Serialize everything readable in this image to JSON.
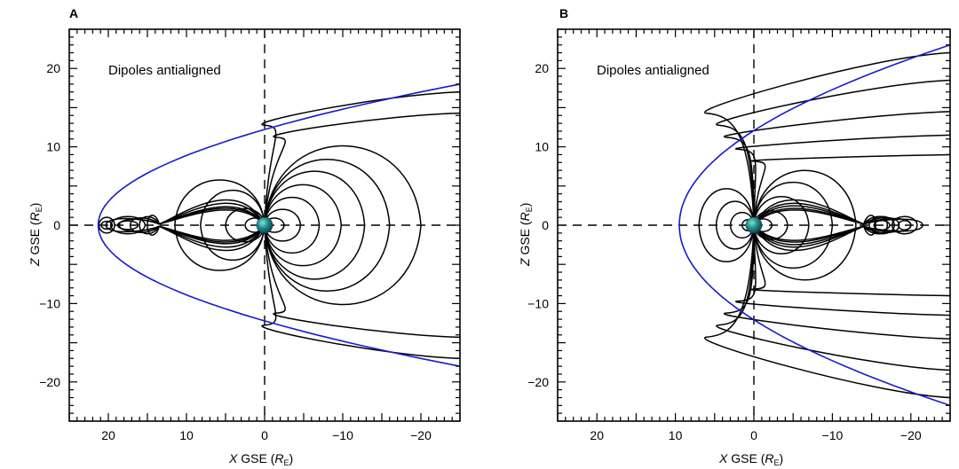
{
  "colors": {
    "frame": "#000000",
    "field_lines": "#000000",
    "magnetopause": "#1a1acc",
    "earth_light": "#7fe3d0",
    "earth_mid": "#1f8a88",
    "earth_dark": "#0b3f4a"
  },
  "panels": [
    {
      "label": "A",
      "annotation": "Dipoles antialigned",
      "x_axis": {
        "label_italic": "X",
        "label_main": " GSE (",
        "label_R": "R",
        "label_sub": "E",
        "label_close": ")",
        "range": [
          25,
          -25
        ],
        "ticks": [
          20,
          10,
          0,
          -10,
          -20
        ],
        "tick_labels": [
          "20",
          "10",
          "0",
          "−10",
          "−20"
        ]
      },
      "y_axis": {
        "label_italic": "Z",
        "label_main": " GSE (",
        "label_R": "R",
        "label_sub": "E",
        "label_close": ")",
        "range": [
          -25,
          25
        ],
        "ticks": [
          20,
          10,
          0,
          -10,
          -20
        ],
        "tick_labels": [
          "20",
          "10",
          "0",
          "−10",
          "−20"
        ]
      },
      "magnetopause": {
        "nose_x": 21.3,
        "tail_x": -25,
        "tail_halfwidth": 18
      },
      "field_lines": {
        "closed_loops": [
          {
            "x_far": -2.5,
            "height": 0.9
          },
          {
            "x_far": -4.6,
            "height": 2.0
          },
          {
            "x_far": -7.0,
            "height": 3.5
          },
          {
            "x_far": -9.8,
            "height": 5.1
          },
          {
            "x_far": -12.8,
            "height": 6.8
          },
          {
            "x_far": -16.0,
            "height": 8.3
          },
          {
            "x_far": -20.0,
            "height": 10.0
          },
          {
            "x_far": 2.5,
            "height": 0.9
          },
          {
            "x_far": 5.0,
            "height": 2.1
          },
          {
            "x_far": 8.2,
            "height": 4.4
          },
          {
            "x_far": 11.5,
            "height": 5.7
          }
        ],
        "neutral_point_x": 13.5,
        "reconnected": [
          {
            "x_end": 15.0,
            "height": 3.0,
            "start_dx": 0.6
          },
          {
            "x_end": 16.0,
            "height": 2.6,
            "start_dx": 1.2
          },
          {
            "x_end": 17.2,
            "height": 2.2,
            "start_dx": 2.0
          },
          {
            "x_end": 18.6,
            "height": 1.8,
            "start_dx": 3.0
          },
          {
            "x_end": 20.3,
            "height": 2.0,
            "start_dx": 4.5
          }
        ],
        "islands": [
          {
            "cx": 17.5,
            "rx": 1.3,
            "ry": 0.55
          },
          {
            "cx": 17.5,
            "rx": 2.2,
            "ry": 1.1
          },
          {
            "cx": 20.2,
            "rx": 0.7,
            "ry": 0.5
          },
          {
            "cx": 20.2,
            "rx": 1.0,
            "ry": 1.0
          }
        ],
        "tail_lines": [
          {
            "tail_z": 17.0,
            "ctrl_z": 12.5,
            "ctrl_x": -3.0
          },
          {
            "tail_z": 14.3,
            "ctrl_z": 11.0,
            "ctrl_x": -4.5
          }
        ]
      }
    },
    {
      "label": "B",
      "annotation": "Dipoles antialigned",
      "x_axis": {
        "label_italic": "X",
        "label_main": " GSE (",
        "label_R": "R",
        "label_sub": "E",
        "label_close": ")",
        "range": [
          25,
          -25
        ],
        "ticks": [
          20,
          10,
          0,
          -10,
          -20
        ],
        "tick_labels": [
          "20",
          "10",
          "0",
          "−10",
          "−20"
        ]
      },
      "y_axis": {
        "label_italic": "Z",
        "label_main": " GSE (",
        "label_R": "R",
        "label_sub": "E",
        "label_close": ")",
        "range": [
          -25,
          25
        ],
        "ticks": [
          20,
          10,
          0,
          -10,
          -20
        ],
        "tick_labels": [
          "20",
          "10",
          "0",
          "−10",
          "−20"
        ]
      },
      "magnetopause": {
        "nose_x": 9.5,
        "tail_x": -25,
        "tail_halfwidth": 23
      },
      "field_lines": {
        "closed_loops": [
          {
            "x_far": 1.5,
            "height": 0.7
          },
          {
            "x_far": 3.0,
            "height": 1.6
          },
          {
            "x_far": 4.8,
            "height": 3.0
          },
          {
            "x_far": 7.0,
            "height": 4.6
          },
          {
            "x_far": -2.3,
            "height": 0.8
          },
          {
            "x_far": -4.3,
            "height": 1.8
          },
          {
            "x_far": -7.0,
            "height": 3.6
          },
          {
            "x_far": -10.0,
            "height": 5.4
          },
          {
            "x_far": -13.0,
            "height": 6.9
          }
        ],
        "neutral_point_x": -14.0,
        "reconnected": [
          {
            "x_end": -15.5,
            "height": 3.0,
            "start_dx": -0.8
          },
          {
            "x_end": -17.0,
            "height": 2.6,
            "start_dx": -1.6
          },
          {
            "x_end": -18.5,
            "height": 2.3,
            "start_dx": -2.6
          },
          {
            "x_end": -20.0,
            "height": 2.0,
            "start_dx": -3.8
          },
          {
            "x_end": -21.5,
            "height": 1.8,
            "start_dx": -5.2
          }
        ],
        "islands": [
          {
            "cx": -16.3,
            "rx": 1.0,
            "ry": 0.6
          },
          {
            "cx": -16.3,
            "rx": 1.6,
            "ry": 1.1
          },
          {
            "cx": -19.2,
            "rx": 0.8,
            "ry": 0.6
          },
          {
            "cx": -19.2,
            "rx": 1.6,
            "ry": 1.1
          }
        ],
        "tail_lines": [
          {
            "tail_z": 22.0,
            "ctrl_z": 14.0,
            "ctrl_x": 3.0
          },
          {
            "tail_z": 18.5,
            "ctrl_z": 12.5,
            "ctrl_x": 1.5
          },
          {
            "tail_z": 14.5,
            "ctrl_z": 11.0,
            "ctrl_x": 0.5
          },
          {
            "tail_z": 11.5,
            "ctrl_z": 9.5,
            "ctrl_x": -1.0
          },
          {
            "tail_z": 9.0,
            "ctrl_z": 8.0,
            "ctrl_x": -3.0
          }
        ]
      }
    }
  ]
}
